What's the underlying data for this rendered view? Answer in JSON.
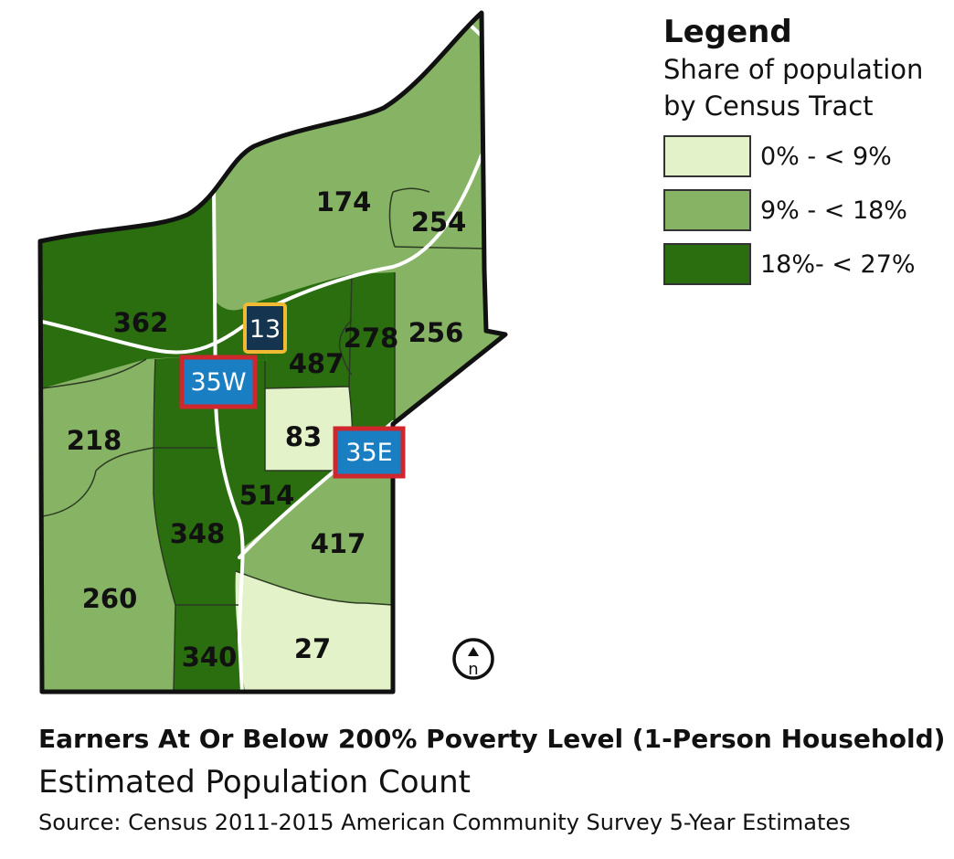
{
  "legend": {
    "title": "Legend",
    "subtitle_line1": "Share of population",
    "subtitle_line2": "by Census Tract",
    "classes": [
      {
        "label": "0% - < 9%",
        "color": "#e3f2c8"
      },
      {
        "label": "9% - < 18%",
        "color": "#86b364"
      },
      {
        "label": "18%- < 27%",
        "color": "#2a6e0f"
      }
    ]
  },
  "tracts": [
    {
      "id": "174",
      "label": "174",
      "share_class": "9-18"
    },
    {
      "id": "254",
      "label": "254",
      "share_class": "9-18"
    },
    {
      "id": "362",
      "label": "362",
      "share_class": "18-27"
    },
    {
      "id": "278",
      "label": "278",
      "share_class": "18-27"
    },
    {
      "id": "256",
      "label": "256",
      "share_class": "9-18"
    },
    {
      "id": "487",
      "label": "487",
      "share_class": "18-27"
    },
    {
      "id": "218",
      "label": "218",
      "share_class": "9-18"
    },
    {
      "id": "83",
      "label": "83",
      "share_class": "0-9"
    },
    {
      "id": "514",
      "label": "514",
      "share_class": "18-27"
    },
    {
      "id": "348",
      "label": "348",
      "share_class": "18-27"
    },
    {
      "id": "417",
      "label": "417",
      "share_class": "9-18"
    },
    {
      "id": "260",
      "label": "260",
      "share_class": "9-18"
    },
    {
      "id": "340",
      "label": "340",
      "share_class": "18-27"
    },
    {
      "id": "27",
      "label": "27",
      "share_class": "0-9"
    }
  ],
  "highways": {
    "hwy13": {
      "label": "13",
      "fill": "#14344f",
      "border": "#f2b934"
    },
    "i35w": {
      "label": "35W",
      "fill": "#1a7ec2",
      "border": "#d0262e"
    },
    "i35e": {
      "label": "35E",
      "fill": "#1a7ec2",
      "border": "#d0262e"
    }
  },
  "north_arrow": {
    "label": "n"
  },
  "title": "Earners At Or Below 200% Poverty Level (1-Person Household)",
  "subtitle": "Estimated Population Count",
  "source": "Source: Census 2011-2015 American Community Survey 5-Year Estimates",
  "colors": {
    "boundary": "#111111",
    "tract_line": "#2b3b22",
    "road": "#ffffff"
  }
}
